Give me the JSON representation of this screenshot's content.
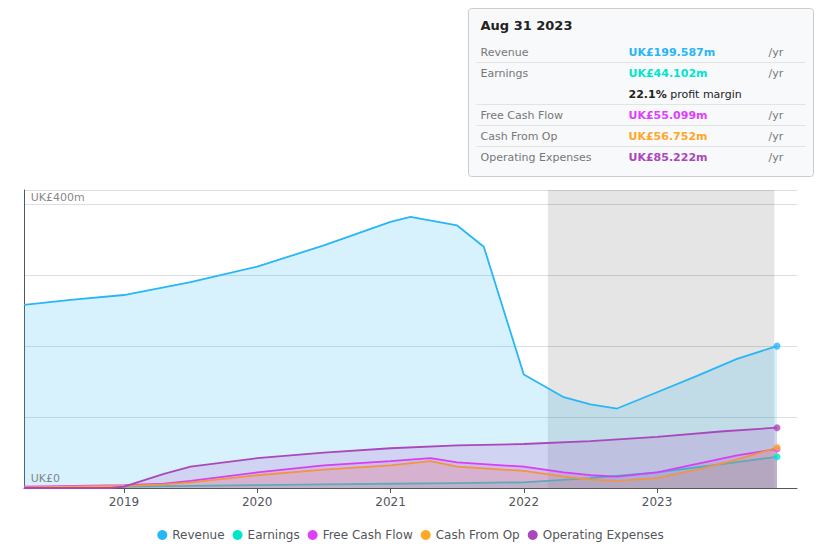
{
  "chart_data": {
    "type": "area",
    "title": "Aug 31 2023",
    "xlim": [
      2018.25,
      2024.05
    ],
    "ylim": [
      0,
      420
    ],
    "xticks": [
      2019,
      2020,
      2021,
      2022,
      2023
    ],
    "yticks": [
      0,
      100,
      200,
      300,
      400
    ],
    "tick_labels": "x",
    "grid": true,
    "legend": "bottom",
    "series": [
      {
        "name": "Revenue",
        "color": "#29b6f6",
        "x": [
          2018.25,
          2018.6,
          2019.0,
          2019.5,
          2020.0,
          2020.5,
          2021.0,
          2021.15,
          2021.5,
          2021.7,
          2022.0,
          2022.3,
          2022.5,
          2022.7,
          2023.0,
          2023.3,
          2023.6,
          2023.9
        ],
        "values": [
          258,
          265,
          272,
          290,
          312,
          342,
          375,
          382,
          370,
          340,
          160,
          128,
          118,
          112,
          135,
          158,
          182,
          200
        ]
      },
      {
        "name": "Earnings",
        "color": "#00e5cc",
        "x": [
          2018.25,
          2019.0,
          2019.5,
          2020.0,
          2020.5,
          2021.0,
          2021.5,
          2022.0,
          2022.5,
          2023.0,
          2023.5,
          2023.9
        ],
        "values": [
          1,
          2,
          3,
          4,
          5,
          6,
          7,
          8,
          14,
          22,
          34,
          44
        ]
      },
      {
        "name": "Free Cash Flow",
        "color": "#e040fb",
        "x": [
          2018.25,
          2019.0,
          2019.3,
          2019.5,
          2020.0,
          2020.5,
          2021.0,
          2021.3,
          2021.5,
          2022.0,
          2022.3,
          2022.5,
          2022.7,
          2023.0,
          2023.3,
          2023.6,
          2023.9
        ],
        "values": [
          2,
          4,
          6,
          10,
          22,
          32,
          38,
          42,
          36,
          30,
          22,
          18,
          16,
          22,
          34,
          46,
          55
        ]
      },
      {
        "name": "Cash From Op",
        "color": "#ffa726",
        "x": [
          2018.25,
          2019.0,
          2019.3,
          2019.5,
          2020.0,
          2020.5,
          2021.0,
          2021.3,
          2021.5,
          2022.0,
          2022.3,
          2022.5,
          2022.7,
          2023.0,
          2023.3,
          2023.6,
          2023.9
        ],
        "values": [
          1,
          3,
          5,
          8,
          18,
          26,
          32,
          38,
          30,
          24,
          16,
          12,
          10,
          14,
          26,
          40,
          57
        ]
      },
      {
        "name": "Operating Expenses",
        "color": "#ab47bc",
        "x": [
          2018.25,
          2018.9,
          2019.0,
          2019.3,
          2019.5,
          2020.0,
          2020.5,
          2021.0,
          2021.5,
          2022.0,
          2022.5,
          2023.0,
          2023.5,
          2023.9
        ],
        "values": [
          0,
          0,
          2,
          20,
          30,
          42,
          50,
          56,
          60,
          62,
          66,
          72,
          80,
          85
        ]
      }
    ],
    "highlight": [
      2022.18,
      2023.88
    ],
    "annotations": [
      {
        "text": "UK£400m",
        "x": 2018.3,
        "y": 402
      },
      {
        "text": "UK£0",
        "x": 2018.3,
        "y": 5
      }
    ],
    "info_box": [
      {
        "label": "Revenue",
        "value": "UK£199.587m",
        "unit": "/yr",
        "color": "#29b6f6"
      },
      {
        "label": "Earnings",
        "value": "UK£44.102m",
        "unit": "/yr",
        "color": "#00e5cc"
      },
      {
        "value": "22.1%",
        "suffix": " profit margin"
      },
      {
        "label": "Free Cash Flow",
        "value": "UK£55.099m",
        "unit": "/yr",
        "color": "#e040fb"
      },
      {
        "label": "Cash From Op",
        "value": "UK£56.752m",
        "unit": "/yr",
        "color": "#ffa726"
      },
      {
        "label": "Operating Expenses",
        "value": "UK£85.222m",
        "unit": "/yr",
        "color": "#ab47bc"
      }
    ]
  }
}
